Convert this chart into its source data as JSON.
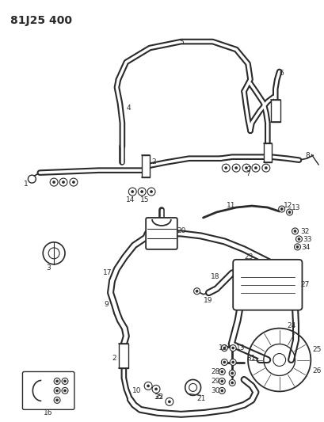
{
  "title": "81J25 400",
  "bg_color": "#ffffff",
  "line_color": "#2a2a2a",
  "fig_width": 4.09,
  "fig_height": 5.33,
  "dpi": 100
}
